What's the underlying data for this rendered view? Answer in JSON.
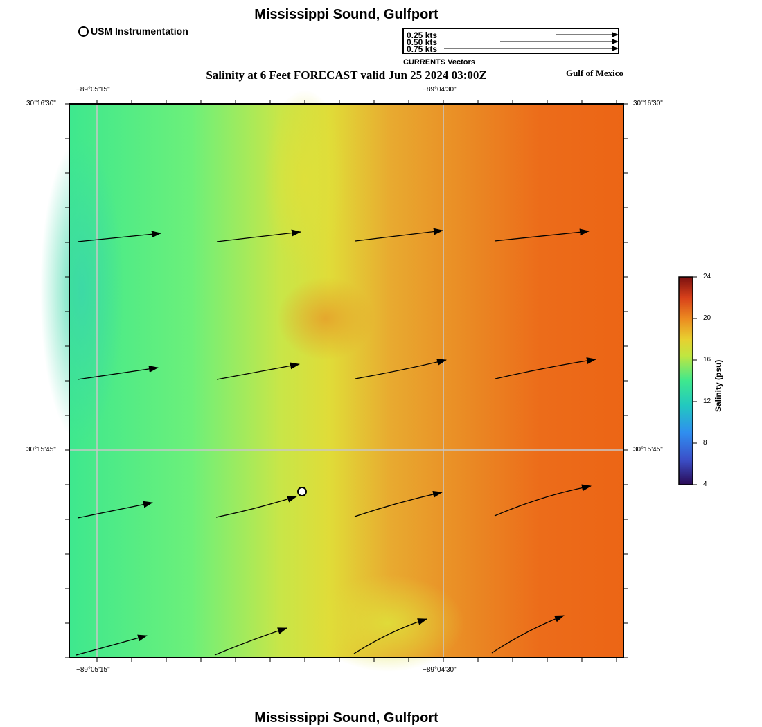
{
  "title_top": "Mississippi Sound, Gulfport",
  "title_bottom": "Mississippi Sound, Gulfport",
  "subtitle": "Salinity at 6 Feet FORECAST valid Jun 25 2024 03:00Z",
  "region_label": "Gulf of Mexico",
  "station_legend": {
    "label": "USM Instrumentation",
    "icon": "open-circle-icon"
  },
  "vector_legend": {
    "rows": [
      "0.25 kts",
      "0.50 kts",
      "0.75 kts"
    ],
    "caption": "CURRENTS Vectors"
  },
  "axes": {
    "lon_ticks": [
      "−89°05'15\"",
      "−89°04'30\""
    ],
    "lat_ticks": [
      "30°16'30\"",
      "30°15'45\""
    ]
  },
  "colorbar": {
    "title": "Salinity (psu)",
    "ticks": [
      "24",
      "20",
      "16",
      "12",
      "8",
      "4"
    ],
    "min": 4,
    "max": 24
  },
  "colors": {
    "low_salinity": "#3ee88e",
    "mid_salinity": "#dde037",
    "high_salinity": "#ec6515",
    "gridline": "#c8c8c8"
  }
}
